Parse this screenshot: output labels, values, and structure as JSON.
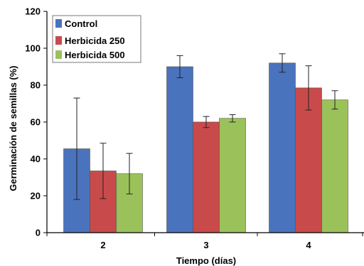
{
  "chart_data": {
    "type": "bar",
    "categories": [
      "2",
      "3",
      "4"
    ],
    "xlabel": "Tiempo (días)",
    "ylabel": "Germinación de semillas (%)",
    "ylim": [
      0,
      120
    ],
    "yticks": [
      "0",
      "20",
      "40",
      "60",
      "80",
      "100",
      "120"
    ],
    "grid": false,
    "legend_position": "top-left",
    "series": [
      {
        "name": "Control",
        "color": "#4a73bd",
        "values": [
          45.5,
          90,
          92
        ],
        "error": [
          27.5,
          6,
          5
        ]
      },
      {
        "name": "Herbicida 250",
        "color": "#c94a4a",
        "values": [
          33.5,
          60,
          78.5
        ],
        "error": [
          15,
          3,
          12
        ]
      },
      {
        "name": "Herbicida 500",
        "color": "#9bc25a",
        "values": [
          32,
          62,
          72
        ],
        "error": [
          11,
          2,
          5
        ]
      }
    ]
  }
}
